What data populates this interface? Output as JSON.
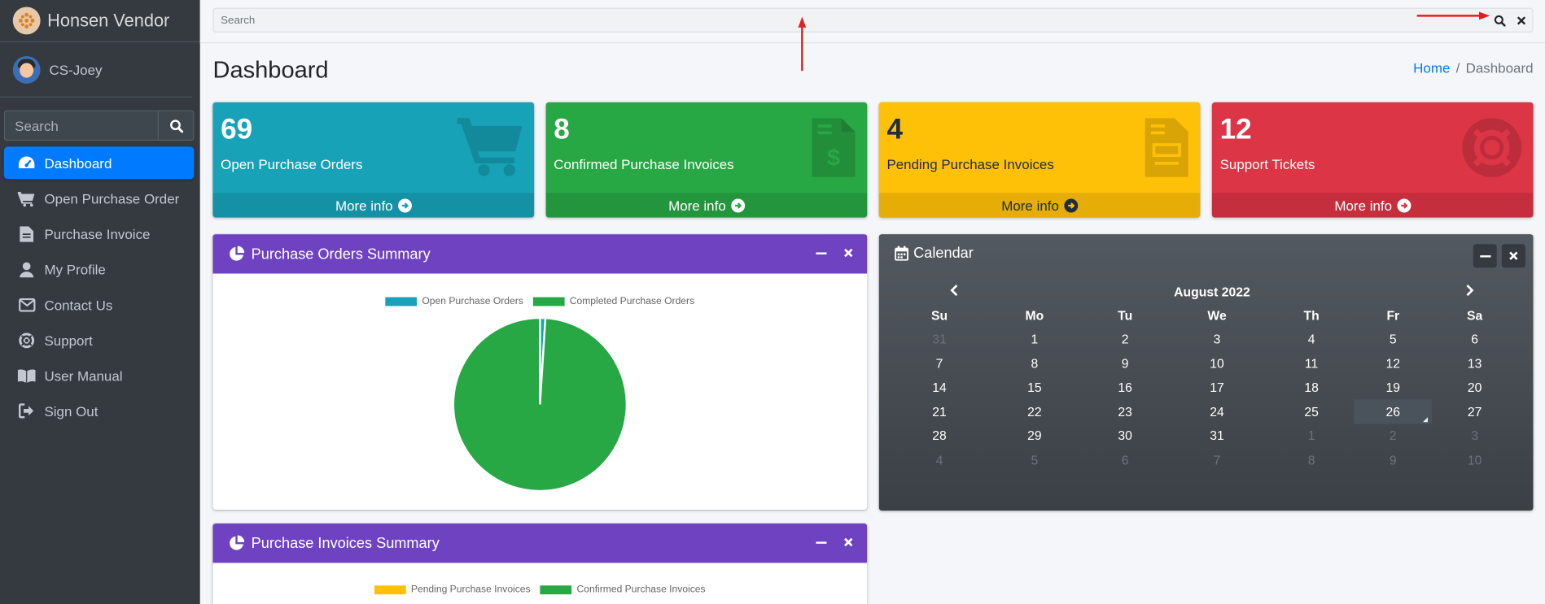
{
  "brand": {
    "name": "Honsen Vendor"
  },
  "user": {
    "name": "CS-Joey"
  },
  "sidebar": {
    "search_placeholder": "Search",
    "items": [
      {
        "label": "Dashboard",
        "icon": "dashboard-icon",
        "active": true
      },
      {
        "label": "Open Purchase Order",
        "icon": "cart-icon"
      },
      {
        "label": "Purchase Invoice",
        "icon": "invoice-icon"
      },
      {
        "label": "My Profile",
        "icon": "user-icon"
      },
      {
        "label": "Contact Us",
        "icon": "envelope-icon"
      },
      {
        "label": "Support",
        "icon": "lifebuoy-icon"
      },
      {
        "label": "User Manual",
        "icon": "book-icon"
      },
      {
        "label": "Sign Out",
        "icon": "sign-out-icon"
      }
    ]
  },
  "topbar": {
    "search_placeholder": "Search"
  },
  "header": {
    "title": "Dashboard",
    "breadcrumb_home": "Home",
    "breadcrumb_sep": "/",
    "breadcrumb_current": "Dashboard"
  },
  "boxes": [
    {
      "value": "69",
      "label": "Open Purchase Orders",
      "more": "More info",
      "color": "#17a2b8",
      "icon": "cart-icon"
    },
    {
      "value": "8",
      "label": "Confirmed Purchase Invoices",
      "more": "More info",
      "color": "#28a745",
      "icon": "invoice-dollar-icon"
    },
    {
      "value": "4",
      "label": "Pending Purchase Invoices",
      "more": "More info",
      "color": "#ffc107",
      "icon": "invoice-icon"
    },
    {
      "value": "12",
      "label": "Support Tickets",
      "more": "More info",
      "color": "#dc3545",
      "icon": "lifebuoy-icon"
    }
  ],
  "po_summary": {
    "title": "Purchase Orders Summary",
    "legend": [
      "Open Purchase Orders",
      "Completed Purchase Orders"
    ]
  },
  "pi_summary": {
    "title": "Purchase Invoices Summary",
    "legend": [
      "Pending Purchase Invoices",
      "Confirmed Purchase Invoices"
    ]
  },
  "chart_data": {
    "type": "pie",
    "categories": [
      "Open Purchase Orders",
      "Completed Purchase Orders"
    ],
    "values": [
      1,
      99
    ],
    "colors": [
      "#17a2b8",
      "#28a745"
    ],
    "legend": "top"
  },
  "calendar": {
    "title": "Calendar",
    "month": "August 2022",
    "weekdays": [
      "Su",
      "Mo",
      "Tu",
      "We",
      "Th",
      "Fr",
      "Sa"
    ],
    "weeks": [
      [
        "31",
        "1",
        "2",
        "3",
        "4",
        "5",
        "6"
      ],
      [
        "7",
        "8",
        "9",
        "10",
        "11",
        "12",
        "13"
      ],
      [
        "14",
        "15",
        "16",
        "17",
        "18",
        "19",
        "20"
      ],
      [
        "21",
        "22",
        "23",
        "24",
        "25",
        "26",
        "27"
      ],
      [
        "28",
        "29",
        "30",
        "31",
        "1",
        "2",
        "3"
      ],
      [
        "4",
        "5",
        "6",
        "7",
        "8",
        "9",
        "10"
      ]
    ],
    "today": "26"
  }
}
